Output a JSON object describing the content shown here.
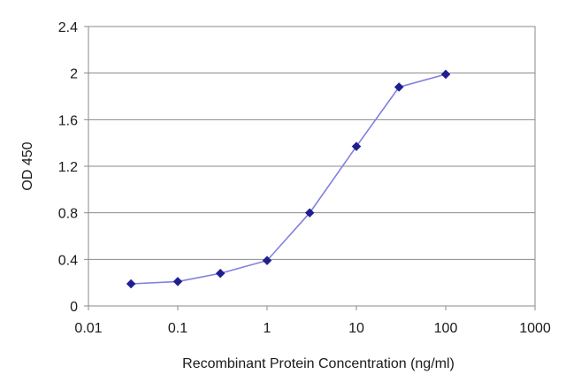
{
  "chart_data": {
    "type": "line",
    "title": "",
    "xlabel": "Recombinant Protein Concentration (ng/ml)",
    "ylabel": "OD 450",
    "x_scale": "log",
    "xlim": [
      0.01,
      1000
    ],
    "ylim": [
      0,
      2.4
    ],
    "x_ticks": [
      0.01,
      0.1,
      1,
      10,
      100,
      1000
    ],
    "x_tick_labels": [
      "0.01",
      "0.1",
      "1",
      "10",
      "100",
      "1000"
    ],
    "y_ticks": [
      0,
      0.4,
      0.8,
      1.2,
      1.6,
      2,
      2.4
    ],
    "y_tick_labels": [
      "0",
      "0.4",
      "0.8",
      "1.2",
      "1.6",
      "2",
      "2.4"
    ],
    "grid": "horizontal",
    "legend": "none",
    "series": [
      {
        "x": [
          0.03,
          0.1,
          0.3,
          1,
          3,
          10,
          30,
          100
        ],
        "y": [
          0.19,
          0.21,
          0.28,
          0.39,
          0.8,
          1.37,
          1.88,
          1.99
        ]
      }
    ],
    "colors": {
      "line": "#7f7fe0",
      "marker": "#1f1f8f",
      "grid": "#8a8a8a",
      "frame": "#8a8a8a",
      "background": "#ffffff"
    }
  }
}
